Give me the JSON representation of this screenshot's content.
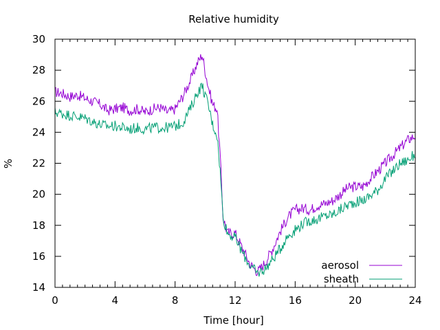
{
  "chart_data": {
    "type": "line",
    "title": "Relative humidity",
    "xlabel": "Time [hour]",
    "ylabel": "%",
    "xlim": [
      0,
      24
    ],
    "ylim": [
      14,
      30
    ],
    "x_ticks": [
      0,
      4,
      8,
      12,
      16,
      20,
      24
    ],
    "y_ticks": [
      14,
      16,
      18,
      20,
      22,
      24,
      26,
      28,
      30
    ],
    "grid": false,
    "legend_position": "bottom-right",
    "series": [
      {
        "name": "aerosol",
        "color": "#9400d3",
        "x": [
          0,
          0.5,
          1,
          1.5,
          2,
          2.5,
          3,
          3.5,
          4,
          4.5,
          5,
          5.5,
          6,
          6.5,
          7,
          7.5,
          8,
          8.5,
          9,
          9.5,
          9.8,
          10.2,
          10.5,
          10.8,
          11,
          11.2,
          11.5,
          12,
          12.5,
          13,
          13.5,
          14,
          14.5,
          15,
          15.5,
          16,
          16.5,
          17,
          17.5,
          18,
          18.5,
          19,
          19.5,
          20,
          20.5,
          21,
          21.5,
          22,
          22.5,
          23,
          23.5,
          24
        ],
        "values": [
          26.6,
          26.5,
          26.3,
          26.4,
          26.2,
          26.0,
          25.8,
          25.4,
          25.5,
          25.6,
          25.4,
          25.5,
          25.3,
          25.5,
          25.6,
          25.3,
          25.5,
          26.3,
          27.3,
          28.5,
          29.0,
          27.0,
          25.8,
          25.5,
          22.5,
          18.5,
          17.5,
          17.5,
          16.5,
          15.5,
          15.0,
          15.6,
          16.5,
          17.6,
          18.5,
          19.0,
          19.1,
          19.0,
          19.3,
          19.4,
          19.6,
          20.0,
          20.4,
          20.5,
          20.5,
          21.0,
          21.5,
          22.0,
          22.5,
          23.0,
          23.5,
          23.8
        ]
      },
      {
        "name": "sheath",
        "color": "#009e73",
        "x": [
          0,
          0.5,
          1,
          1.5,
          2,
          2.5,
          3,
          3.5,
          4,
          4.5,
          5,
          5.5,
          6,
          6.5,
          7,
          7.5,
          8,
          8.5,
          9,
          9.5,
          9.8,
          10.2,
          10.5,
          10.8,
          11,
          11.2,
          11.5,
          12,
          12.5,
          13,
          13.5,
          14,
          14.5,
          15,
          15.5,
          16,
          16.5,
          17,
          17.5,
          18,
          18.5,
          19,
          19.5,
          20,
          20.5,
          21,
          21.5,
          22,
          22.5,
          23,
          23.5,
          24
        ],
        "values": [
          25.3,
          25.2,
          25.1,
          25.0,
          24.9,
          24.7,
          24.5,
          24.4,
          24.4,
          24.3,
          24.2,
          24.3,
          24.2,
          24.3,
          24.3,
          24.3,
          24.4,
          24.6,
          25.5,
          26.6,
          27.0,
          25.8,
          24.5,
          23.8,
          21.5,
          18.5,
          17.5,
          17.2,
          16.2,
          15.4,
          14.9,
          15.2,
          15.8,
          16.5,
          17.3,
          17.7,
          18.1,
          18.3,
          18.4,
          18.6,
          18.7,
          19.0,
          19.3,
          19.5,
          19.6,
          19.9,
          20.3,
          21.0,
          21.5,
          22.0,
          22.2,
          22.6
        ]
      }
    ]
  }
}
